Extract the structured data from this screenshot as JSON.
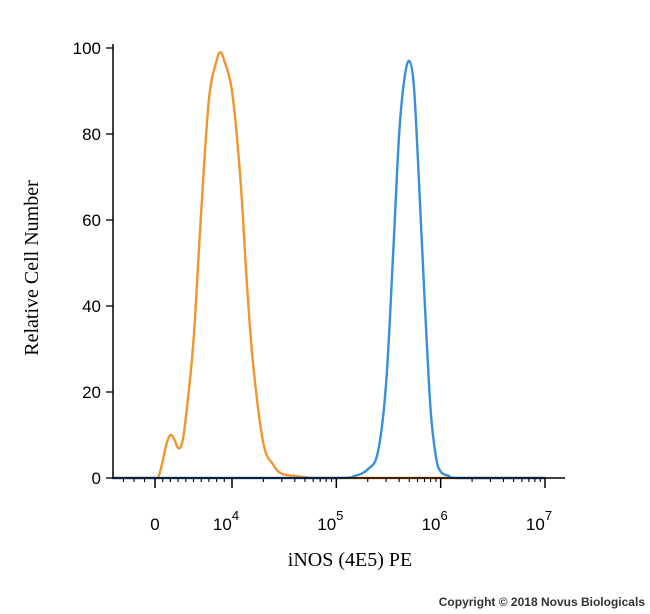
{
  "chart_data": {
    "type": "line",
    "title": "",
    "xlabel": "iNOS (4E5) PE",
    "ylabel": "Relative Cell Number",
    "x_scale": "biexponential",
    "ylim": [
      0,
      100
    ],
    "y_ticks": [
      0,
      20,
      40,
      60,
      80,
      100
    ],
    "x_ticks": [
      {
        "value": 0,
        "base": "0",
        "exp": ""
      },
      {
        "value": 10000,
        "base": "10",
        "exp": "4"
      },
      {
        "value": 100000,
        "base": "10",
        "exp": "5"
      },
      {
        "value": 1000000,
        "base": "10",
        "exp": "6"
      },
      {
        "value": 10000000,
        "base": "10",
        "exp": "7"
      }
    ],
    "grid": false,
    "legend": "none",
    "series": [
      {
        "color": "#f2952f",
        "x": [
          -800,
          -400,
          0,
          500,
          1000,
          1500,
          2000,
          2500,
          3000,
          3500,
          4000,
          5000,
          6000,
          7000,
          8000,
          8500,
          9000,
          10000,
          12000,
          14000,
          16000,
          20000,
          25000,
          30000,
          40000,
          60000,
          100000,
          150000,
          200000,
          250000,
          300000,
          400000,
          1000000,
          10000000
        ],
        "y": [
          0,
          0,
          0,
          0.5,
          4,
          8,
          10,
          9,
          7,
          8,
          14,
          32,
          62,
          88,
          97,
          99,
          97,
          90,
          70,
          44,
          26,
          8,
          3,
          1,
          0.5,
          0,
          0,
          0,
          0,
          0,
          0,
          0,
          0,
          0
        ]
      },
      {
        "color": "#3a8fd9",
        "x": [
          -800,
          10000,
          100000,
          150000,
          200000,
          250000,
          300000,
          350000,
          400000,
          450000,
          500000,
          550000,
          600000,
          700000,
          800000,
          900000,
          1000000,
          1200000,
          1500000,
          10000000
        ],
        "y": [
          0,
          0,
          0,
          0.5,
          2,
          6,
          22,
          52,
          80,
          93,
          97,
          92,
          76,
          42,
          16,
          5,
          1.5,
          0.5,
          0,
          0
        ]
      }
    ]
  },
  "copyright": "Copyright © 2018 Novus Biologicals"
}
